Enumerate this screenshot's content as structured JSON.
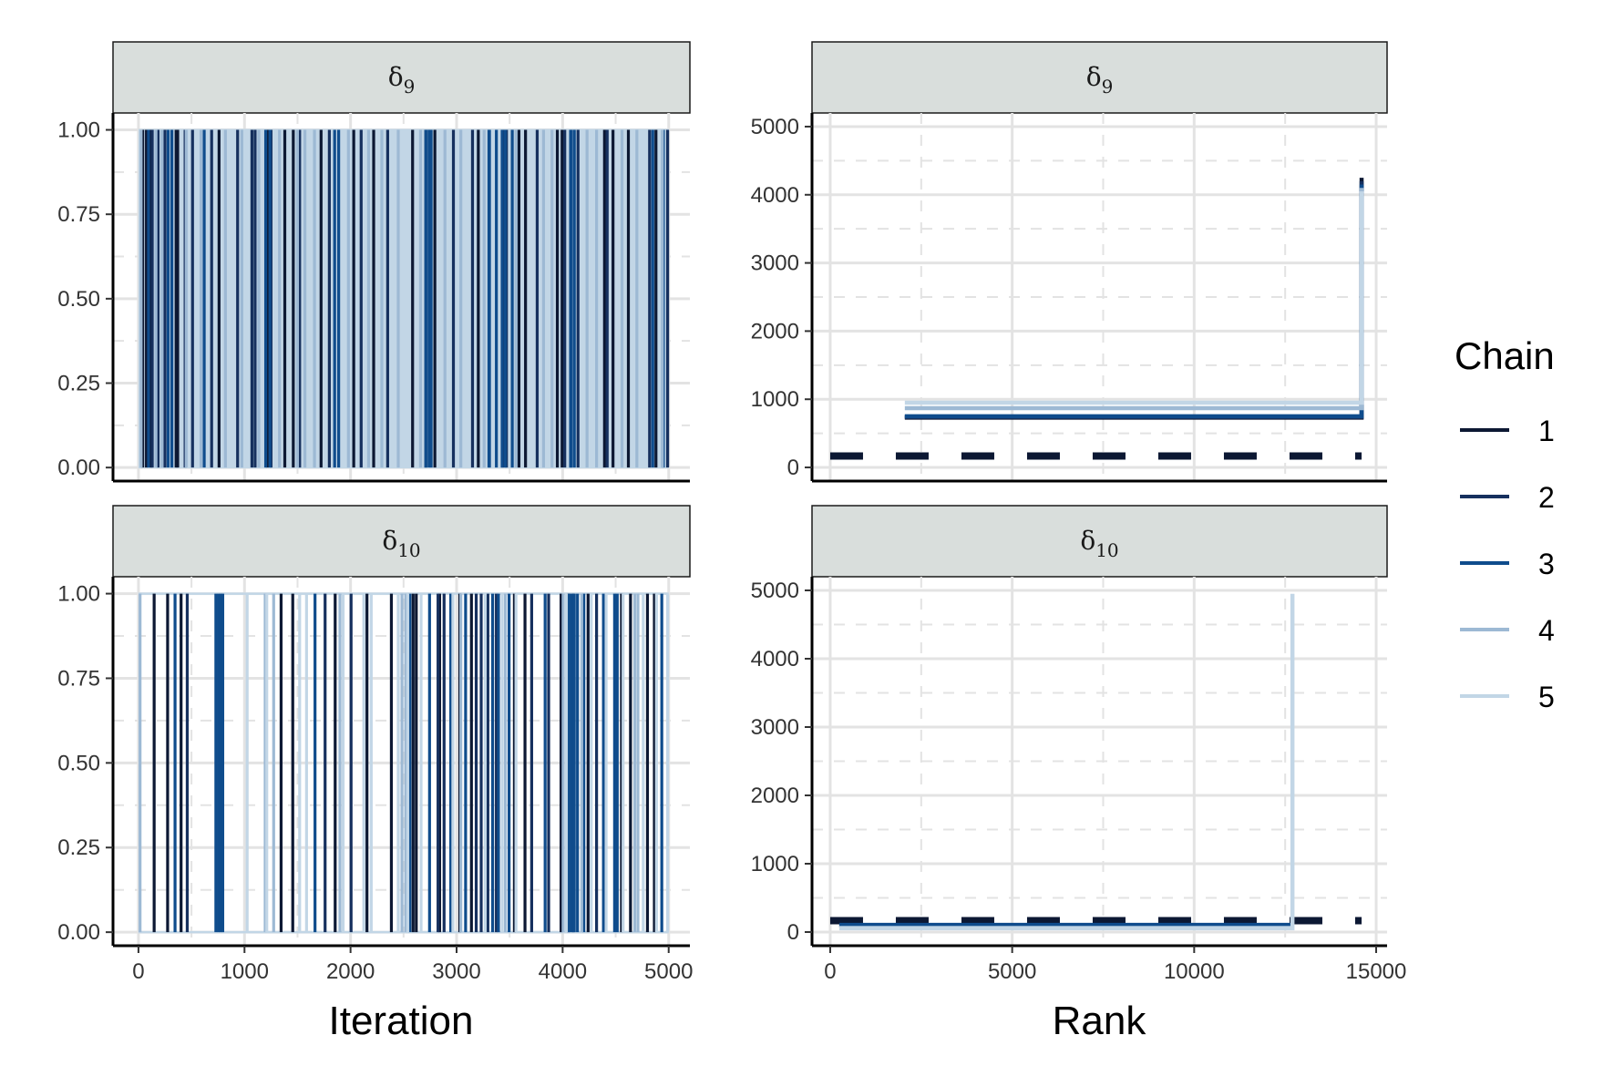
{
  "colors": {
    "chain1": "#0c1833",
    "chain2": "#16305e",
    "chain3": "#0f4c8c",
    "chain4": "#9db9d4",
    "chain5": "#c2d6e6",
    "grid": "#e3e3e3",
    "strip_bg": "#d9dedc",
    "uniform_line": "#0c1833"
  },
  "legend": {
    "title": "Chain",
    "items": [
      {
        "label": "1",
        "color": "#0c1833"
      },
      {
        "label": "2",
        "color": "#16305e"
      },
      {
        "label": "3",
        "color": "#0f4c8c"
      },
      {
        "label": "4",
        "color": "#9db9d4"
      },
      {
        "label": "5",
        "color": "#c2d6e6"
      }
    ]
  },
  "chart_data": [
    {
      "type": "line",
      "panel": "trace",
      "title_symbol": "δ",
      "title_sub": "9",
      "xlabel": "Iteration",
      "ylabel": "",
      "xlim": [
        -240,
        5200
      ],
      "ylim": [
        -0.04,
        1.05
      ],
      "xticks": [
        "0",
        "1000",
        "2000",
        "3000",
        "4000",
        "5000"
      ],
      "yticks": [
        "0.00",
        "0.25",
        "0.50",
        "0.75",
        "1.00"
      ],
      "ytick_values": [
        0,
        0.25,
        0.5,
        0.75,
        1
      ],
      "iterations": [
        0,
        5000
      ],
      "states": [
        0,
        1
      ],
      "dominant_state": 1,
      "background_state_color": "#c2d6e6",
      "switches_to_zero": [
        {
          "chain": 1,
          "iterations": [
            40,
            75,
            118,
            355,
            370,
            760,
            1215,
            1380,
            1460,
            1722,
            2030,
            2218,
            2585,
            2795,
            3205,
            3588,
            3650,
            3950,
            3995,
            4395,
            4475,
            4620,
            4880
          ]
        },
        {
          "chain": 2,
          "iterations": [
            130,
            185,
            250,
            440,
            510,
            690,
            935,
            1070,
            1100,
            1250,
            1520,
            1800,
            2100,
            2350,
            2710,
            2970,
            3150,
            3435,
            3470,
            3760,
            4020,
            4145,
            4420,
            4820,
            4990
          ]
        },
        {
          "chain": 3,
          "iterations": [
            95,
            280,
            315,
            620,
            1200,
            1240,
            1850,
            1888,
            2710,
            2740,
            2760,
            3305,
            3310,
            3375,
            3430,
            3460,
            3525,
            4075,
            4080,
            4110,
            4850,
            4950
          ]
        },
        {
          "chain": 4,
          "iterations": [
            25,
            165,
            222,
            450,
            590,
            820,
            975,
            1135,
            1330,
            1500,
            1570,
            1660,
            1980,
            2170,
            2295,
            2450,
            2660,
            2890,
            3040,
            3260,
            3560,
            3820,
            3900,
            4230,
            4320,
            4560,
            4700,
            4940
          ]
        }
      ]
    },
    {
      "type": "line",
      "panel": "rank",
      "title_symbol": "δ",
      "title_sub": "9",
      "xlabel": "Rank",
      "ylabel": "",
      "xlim": [
        -500,
        15300
      ],
      "ylim": [
        -200,
        5200
      ],
      "xticks": [
        "0",
        "5000",
        "10000",
        "15000"
      ],
      "yticks": [
        "0",
        "1000",
        "2000",
        "3000",
        "4000",
        "5000"
      ],
      "ytick_values": [
        0,
        1000,
        2000,
        3000,
        4000,
        5000
      ],
      "uniform_reference": 167,
      "series": [
        {
          "name": "1",
          "x": [
            2050,
            14600,
            14600
          ],
          "y": [
            730,
            730,
            4250
          ]
        },
        {
          "name": "2",
          "x": [
            2050,
            14600,
            14600
          ],
          "y": [
            740,
            740,
            4200
          ]
        },
        {
          "name": "3",
          "x": [
            2050,
            14600,
            14600
          ],
          "y": [
            750,
            750,
            4150
          ]
        },
        {
          "name": "4",
          "x": [
            2050,
            14600,
            14600
          ],
          "y": [
            870,
            870,
            4100
          ]
        },
        {
          "name": "5",
          "x": [
            2050,
            14600,
            14600
          ],
          "y": [
            950,
            950,
            4050
          ]
        }
      ]
    },
    {
      "type": "line",
      "panel": "trace",
      "title_symbol": "δ",
      "title_sub": "10",
      "xlabel": "Iteration",
      "ylabel": "",
      "xlim": [
        -240,
        5200
      ],
      "ylim": [
        -0.04,
        1.05
      ],
      "xticks": [
        "0",
        "1000",
        "2000",
        "3000",
        "4000",
        "5000"
      ],
      "yticks": [
        "0.00",
        "0.25",
        "0.50",
        "0.75",
        "1.00"
      ],
      "ytick_values": [
        0,
        0.25,
        0.5,
        0.75,
        1
      ],
      "iterations": [
        0,
        5000
      ],
      "states": [
        0,
        1
      ],
      "dominant_state": 0,
      "background_state_color": "#ffffff",
      "switches_to_one": [
        {
          "chain": 1,
          "iterations": [
            148,
            275,
            402,
            1345,
            1455,
            1855,
            2155,
            2385,
            2590,
            2620,
            2840,
            3030,
            3140,
            3545,
            3645,
            3985,
            4055,
            4240,
            4555,
            4640,
            4800,
            4865
          ]
        },
        {
          "chain": 2,
          "iterations": [
            460,
            1760,
            2005,
            2825,
            2882,
            3185,
            3232,
            3295,
            3375,
            3708,
            3868,
            4100,
            4320
          ]
        },
        {
          "chain": 3,
          "iterations": [
            345,
            730,
            755,
            775,
            795,
            1665,
            2560,
            2745,
            2945,
            3085,
            3340,
            3395,
            3495,
            3835,
            4060,
            4085,
            4110,
            4140,
            4200,
            4385,
            4490,
            4515,
            4935
          ]
        },
        {
          "chain": 4,
          "iterations": [
            15,
            1195,
            1275,
            1900,
            2485,
            2520,
            3040,
            3460,
            4005,
            4180,
            4680,
            4710
          ]
        },
        {
          "chain": 5,
          "iterations": [
            1025,
            1210,
            1520,
            1585,
            1930,
            2125,
            2195,
            2450,
            2540,
            2665,
            2965,
            3270,
            3430,
            3560,
            4035,
            4270,
            4410,
            4570,
            4760,
            4885,
            4990
          ]
        }
      ]
    },
    {
      "type": "line",
      "panel": "rank",
      "title_symbol": "δ",
      "title_sub": "10",
      "xlabel": "Rank",
      "ylabel": "",
      "xlim": [
        -500,
        15300
      ],
      "ylim": [
        -200,
        5200
      ],
      "xticks": [
        "0",
        "5000",
        "10000",
        "15000"
      ],
      "yticks": [
        "0",
        "1000",
        "2000",
        "3000",
        "4000",
        "5000"
      ],
      "ytick_values": [
        0,
        1000,
        2000,
        3000,
        4000,
        5000
      ],
      "uniform_reference": 167,
      "series": [
        {
          "name": "1",
          "x": [
            250,
            12700
          ],
          "y": [
            95,
            95
          ]
        },
        {
          "name": "2",
          "x": [
            250,
            12700
          ],
          "y": [
            100,
            100
          ]
        },
        {
          "name": "3",
          "x": [
            250,
            12700
          ],
          "y": [
            105,
            105
          ]
        },
        {
          "name": "4",
          "x": [
            250,
            12700
          ],
          "y": [
            60,
            60
          ]
        },
        {
          "name": "5",
          "x": [
            250,
            12700,
            12700
          ],
          "y": [
            55,
            55,
            4950
          ]
        }
      ]
    }
  ]
}
